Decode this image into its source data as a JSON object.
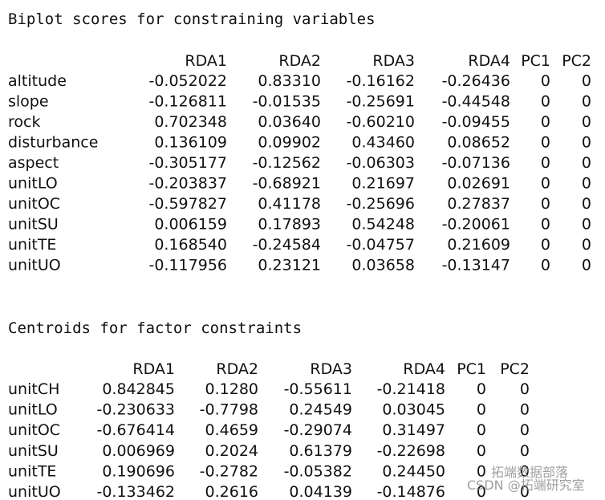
{
  "sections": [
    {
      "title": "Biplot scores for constraining variables",
      "columns": [
        "RDA1",
        "RDA2",
        "RDA3",
        "RDA4",
        "PC1",
        "PC2"
      ],
      "rows": [
        {
          "label": "altitude",
          "cells": [
            "-0.052022",
            "0.83310",
            "-0.16162",
            "-0.26436",
            "0",
            "0"
          ]
        },
        {
          "label": "slope",
          "cells": [
            "-0.126811",
            "-0.01535",
            "-0.25691",
            "-0.44548",
            "0",
            "0"
          ]
        },
        {
          "label": "rock",
          "cells": [
            "0.702348",
            "0.03640",
            "-0.60210",
            "-0.09455",
            "0",
            "0"
          ]
        },
        {
          "label": "disturbance",
          "cells": [
            "0.136109",
            "0.09902",
            "0.43460",
            "0.08652",
            "0",
            "0"
          ]
        },
        {
          "label": "aspect",
          "cells": [
            "-0.305177",
            "-0.12562",
            "-0.06303",
            "-0.07136",
            "0",
            "0"
          ]
        },
        {
          "label": "unitLO",
          "cells": [
            "-0.203837",
            "-0.68921",
            "0.21697",
            "0.02691",
            "0",
            "0"
          ]
        },
        {
          "label": "unitOC",
          "cells": [
            "-0.597827",
            "0.41178",
            "-0.25696",
            "0.27837",
            "0",
            "0"
          ]
        },
        {
          "label": "unitSU",
          "cells": [
            "0.006159",
            "0.17893",
            "0.54248",
            "-0.20061",
            "0",
            "0"
          ]
        },
        {
          "label": "unitTE",
          "cells": [
            "0.168540",
            "-0.24584",
            "-0.04757",
            "0.21609",
            "0",
            "0"
          ]
        },
        {
          "label": "unitUO",
          "cells": [
            "-0.117956",
            "0.23121",
            "0.03658",
            "-0.13147",
            "0",
            "0"
          ]
        }
      ]
    },
    {
      "title": "Centroids for factor constraints",
      "columns": [
        "RDA1",
        "RDA2",
        "RDA3",
        "RDA4",
        "PC1",
        "PC2"
      ],
      "rows": [
        {
          "label": "unitCH",
          "cells": [
            "0.842845",
            "0.1280",
            "-0.55611",
            "-0.21418",
            "0",
            "0"
          ]
        },
        {
          "label": "unitLO",
          "cells": [
            "-0.230633",
            "-0.7798",
            "0.24549",
            "0.03045",
            "0",
            "0"
          ]
        },
        {
          "label": "unitOC",
          "cells": [
            "-0.676414",
            "0.4659",
            "-0.29074",
            "0.31497",
            "0",
            "0"
          ]
        },
        {
          "label": "unitSU",
          "cells": [
            "0.006969",
            "0.2024",
            "0.61379",
            "-0.22698",
            "0",
            "0"
          ]
        },
        {
          "label": "unitTE",
          "cells": [
            "0.190696",
            "-0.2782",
            "-0.05382",
            "0.24450",
            "0",
            "0"
          ]
        },
        {
          "label": "unitUO",
          "cells": [
            "-0.133462",
            "0.2616",
            "0.04139",
            "-0.14876",
            "0",
            "0"
          ]
        }
      ]
    }
  ],
  "watermark": {
    "top": "拓端数据部落",
    "bottom": "CSDN @拓端研究室"
  }
}
